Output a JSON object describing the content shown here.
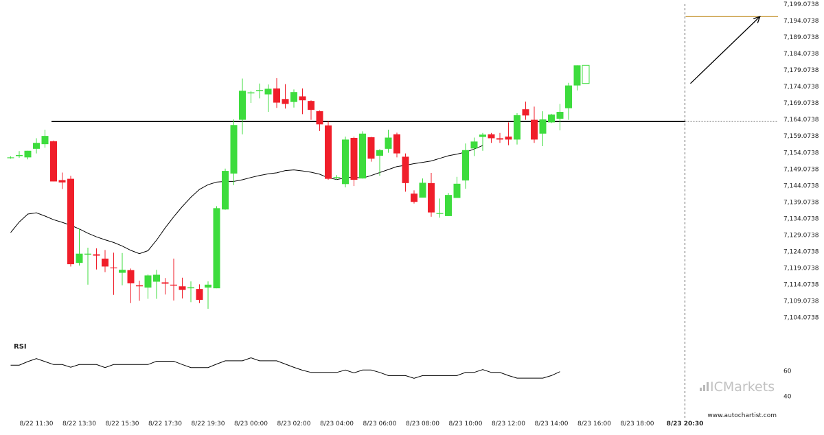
{
  "chart_data": {
    "type": "candlestick",
    "instrument_note": "",
    "colors": {
      "bullish": "#3ddc3d",
      "bearish": "#f01e2a",
      "moving_average": "#000000",
      "support_line": "#000000",
      "target_line": "#c89a3c",
      "forecast_arrow": "#000000",
      "rsi_line": "#000000"
    },
    "y_axis": {
      "min": 7101.0738,
      "max": 7199.0738,
      "tick_labels": [
        "7,199.0738",
        "7,194.0738",
        "7,189.0738",
        "7,184.0738",
        "7,179.0738",
        "7,174.0738",
        "7,169.0738",
        "7,164.0738",
        "7,159.0738",
        "7,154.0738",
        "7,149.0738",
        "7,144.0738",
        "7,139.0738",
        "7,134.0738",
        "7,129.0738",
        "7,124.0738",
        "7,119.0738",
        "7,114.0738",
        "7,109.0738",
        "7,104.0738"
      ],
      "tick_values": [
        7199.0738,
        7194.0738,
        7189.0738,
        7184.0738,
        7179.0738,
        7174.0738,
        7169.0738,
        7164.0738,
        7159.0738,
        7154.0738,
        7149.0738,
        7144.0738,
        7139.0738,
        7134.0738,
        7129.0738,
        7124.0738,
        7119.0738,
        7114.0738,
        7109.0738,
        7104.0738
      ]
    },
    "x_axis": {
      "tick_labels": [
        "8/22 11:30",
        "8/22 13:30",
        "8/22 15:30",
        "8/22 17:30",
        "8/22 19:30",
        "8/23 00:00",
        "8/23 02:00",
        "8/23 04:00",
        "8/23 06:00",
        "8/23 08:00",
        "8/23 10:00",
        "8/23 12:00",
        "8/23 14:00",
        "8/23 16:00",
        "8/23 18:00",
        "8/23 20:30"
      ],
      "tick_indices": [
        3,
        8,
        13,
        18,
        23,
        28,
        33,
        38,
        43,
        48,
        53,
        58,
        63,
        68,
        73,
        78
      ],
      "bold_last": true
    },
    "candles": [
      {
        "o": 7152.6,
        "h": 7152.9,
        "l": 7152.2,
        "c": 7152.6
      },
      {
        "o": 7153.0,
        "h": 7154.5,
        "l": 7152.5,
        "c": 7153.3
      },
      {
        "o": 7152.6,
        "h": 7154.6,
        "l": 7152.0,
        "c": 7154.6
      },
      {
        "o": 7155.2,
        "h": 7158.4,
        "l": 7153.8,
        "c": 7157.0
      },
      {
        "o": 7156.6,
        "h": 7161.0,
        "l": 7155.5,
        "c": 7159.1
      },
      {
        "o": 7157.5,
        "h": 7157.7,
        "l": 7145.3,
        "c": 7145.3
      },
      {
        "o": 7145.7,
        "h": 7148.0,
        "l": 7143.0,
        "c": 7145.0
      },
      {
        "o": 7146.1,
        "h": 7147.0,
        "l": 7119.5,
        "c": 7120.2
      },
      {
        "o": 7120.6,
        "h": 7131.1,
        "l": 7119.8,
        "c": 7123.4
      },
      {
        "o": 7123.1,
        "h": 7125.2,
        "l": 7114.0,
        "c": 7123.4
      },
      {
        "o": 7123.2,
        "h": 7125.0,
        "l": 7118.6,
        "c": 7122.8
      },
      {
        "o": 7121.9,
        "h": 7124.5,
        "l": 7117.8,
        "c": 7119.5
      },
      {
        "o": 7119.2,
        "h": 7123.7,
        "l": 7110.9,
        "c": 7119.1
      },
      {
        "o": 7117.6,
        "h": 7123.6,
        "l": 7113.8,
        "c": 7118.5
      },
      {
        "o": 7118.4,
        "h": 7118.9,
        "l": 7108.4,
        "c": 7114.4
      },
      {
        "o": 7113.8,
        "h": 7115.2,
        "l": 7109.1,
        "c": 7113.5
      },
      {
        "o": 7113.1,
        "h": 7117.1,
        "l": 7109.7,
        "c": 7116.8
      },
      {
        "o": 7114.9,
        "h": 7118.5,
        "l": 7109.7,
        "c": 7117.0
      },
      {
        "o": 7114.7,
        "h": 7116.0,
        "l": 7111.0,
        "c": 7114.3
      },
      {
        "o": 7114.0,
        "h": 7121.9,
        "l": 7109.2,
        "c": 7113.7
      },
      {
        "o": 7113.5,
        "h": 7116.1,
        "l": 7109.8,
        "c": 7112.4
      },
      {
        "o": 7112.9,
        "h": 7115.0,
        "l": 7108.7,
        "c": 7113.2
      },
      {
        "o": 7112.7,
        "h": 7114.1,
        "l": 7108.4,
        "c": 7109.4
      },
      {
        "o": 7113.1,
        "h": 7115.0,
        "l": 7106.7,
        "c": 7114.0
      },
      {
        "o": 7112.9,
        "h": 7137.8,
        "l": 7112.9,
        "c": 7137.2
      },
      {
        "o": 7136.8,
        "h": 7149.2,
        "l": 7136.7,
        "c": 7148.5
      },
      {
        "o": 7147.7,
        "h": 7164.1,
        "l": 7144.2,
        "c": 7162.4
      },
      {
        "o": 7164.0,
        "h": 7176.5,
        "l": 7159.6,
        "c": 7172.8
      },
      {
        "o": 7172.0,
        "h": 7172.7,
        "l": 7169.1,
        "c": 7172.3
      },
      {
        "o": 7172.7,
        "h": 7175.0,
        "l": 7170.5,
        "c": 7173.0
      },
      {
        "o": 7171.7,
        "h": 7174.7,
        "l": 7166.4,
        "c": 7173.4
      },
      {
        "o": 7173.5,
        "h": 7176.6,
        "l": 7167.6,
        "c": 7169.2
      },
      {
        "o": 7170.3,
        "h": 7174.8,
        "l": 7167.4,
        "c": 7168.8
      },
      {
        "o": 7169.4,
        "h": 7173.2,
        "l": 7167.7,
        "c": 7172.4
      },
      {
        "o": 7171.1,
        "h": 7173.5,
        "l": 7165.7,
        "c": 7169.9
      },
      {
        "o": 7169.7,
        "h": 7169.9,
        "l": 7164.0,
        "c": 7167.0
      },
      {
        "o": 7166.6,
        "h": 7166.8,
        "l": 7160.6,
        "c": 7162.6
      },
      {
        "o": 7162.3,
        "h": 7163.6,
        "l": 7145.8,
        "c": 7146.1
      },
      {
        "o": 7146.4,
        "h": 7147.2,
        "l": 7145.8,
        "c": 7146.6
      },
      {
        "o": 7144.5,
        "h": 7158.9,
        "l": 7143.5,
        "c": 7158.0
      },
      {
        "o": 7158.5,
        "h": 7158.9,
        "l": 7143.9,
        "c": 7145.8
      },
      {
        "o": 7146.2,
        "h": 7160.5,
        "l": 7146.2,
        "c": 7159.8
      },
      {
        "o": 7158.7,
        "h": 7158.8,
        "l": 7151.3,
        "c": 7152.2
      },
      {
        "o": 7153.1,
        "h": 7155.1,
        "l": 7147.0,
        "c": 7154.8
      },
      {
        "o": 7155.2,
        "h": 7161.0,
        "l": 7154.0,
        "c": 7158.6
      },
      {
        "o": 7159.6,
        "h": 7160.1,
        "l": 7152.6,
        "c": 7153.8
      },
      {
        "o": 7152.8,
        "h": 7153.8,
        "l": 7142.2,
        "c": 7144.8
      },
      {
        "o": 7141.6,
        "h": 7142.6,
        "l": 7138.6,
        "c": 7139.1
      },
      {
        "o": 7140.4,
        "h": 7146.2,
        "l": 7140.4,
        "c": 7144.9
      },
      {
        "o": 7144.8,
        "h": 7147.9,
        "l": 7134.6,
        "c": 7135.9
      },
      {
        "o": 7135.7,
        "h": 7140.1,
        "l": 7134.3,
        "c": 7135.7
      },
      {
        "o": 7134.8,
        "h": 7141.8,
        "l": 7134.8,
        "c": 7141.2
      },
      {
        "o": 7140.3,
        "h": 7146.7,
        "l": 7140.3,
        "c": 7144.6
      },
      {
        "o": 7145.6,
        "h": 7156.8,
        "l": 7143.1,
        "c": 7154.8
      },
      {
        "o": 7155.3,
        "h": 7158.6,
        "l": 7153.0,
        "c": 7157.4
      },
      {
        "o": 7158.8,
        "h": 7160.0,
        "l": 7154.6,
        "c": 7159.5
      },
      {
        "o": 7159.6,
        "h": 7160.0,
        "l": 7157.0,
        "c": 7158.4
      },
      {
        "o": 7158.4,
        "h": 7160.0,
        "l": 7157.0,
        "c": 7158.0
      },
      {
        "o": 7158.9,
        "h": 7163.2,
        "l": 7156.3,
        "c": 7158.0
      },
      {
        "o": 7158.0,
        "h": 7166.0,
        "l": 7156.5,
        "c": 7165.4
      },
      {
        "o": 7167.2,
        "h": 7169.5,
        "l": 7164.0,
        "c": 7165.3
      },
      {
        "o": 7164.0,
        "h": 7168.0,
        "l": 7157.0,
        "c": 7158.0
      },
      {
        "o": 7159.8,
        "h": 7166.6,
        "l": 7156.0,
        "c": 7164.1
      },
      {
        "o": 7163.2,
        "h": 7165.8,
        "l": 7163.0,
        "c": 7165.6
      },
      {
        "o": 7164.3,
        "h": 7168.8,
        "l": 7160.8,
        "c": 7166.4
      },
      {
        "o": 7167.5,
        "h": 7175.2,
        "l": 7164.0,
        "c": 7174.4
      },
      {
        "o": 7174.4,
        "h": 7180.5,
        "l": 7172.9,
        "c": 7180.5
      }
    ],
    "moving_average": [
      7129.8,
      7133.0,
      7135.4,
      7135.8,
      7134.8,
      7133.7,
      7132.9,
      7132.0,
      7130.9,
      7129.6,
      7128.5,
      7127.6,
      7126.8,
      7125.7,
      7124.4,
      7123.4,
      7124.3,
      7127.5,
      7131.2,
      7134.6,
      7137.7,
      7140.5,
      7142.9,
      7144.3,
      7145.1,
      7145.3,
      7145.3,
      7145.8,
      7146.5,
      7147.1,
      7147.6,
      7147.9,
      7148.6,
      7148.8,
      7148.5,
      7148.1,
      7147.5,
      7146.4,
      7145.9,
      7146.4,
      7146.6,
      7146.3,
      7147.1,
      7148.0,
      7148.9,
      7149.8,
      7150.2,
      7150.7,
      7151.1,
      7151.5,
      7152.3,
      7153.1,
      7153.6,
      7154.2,
      7155.1,
      7156.2
    ],
    "support_level": 7163.5,
    "target_level": 7195.3,
    "forecast_start": {
      "index": 79.2,
      "value": 7175.0
    },
    "forecast_end": {
      "index": 87.3,
      "value": 7195.3
    },
    "rsi": {
      "label": "RSI",
      "tick_labels": [
        "60",
        "40"
      ],
      "tick_values": [
        60,
        40
      ],
      "range": [
        36,
        76.5
      ],
      "values": [
        64.5,
        64.5,
        67.3,
        69.7,
        67.3,
        65.0,
        65.0,
        62.9,
        65.0,
        65.0,
        65.0,
        62.6,
        65.0,
        65.0,
        65.0,
        65.0,
        65.0,
        67.6,
        67.6,
        67.6,
        65.0,
        62.6,
        62.6,
        62.6,
        65.4,
        67.9,
        67.9,
        67.9,
        70.3,
        67.9,
        67.9,
        67.9,
        65.4,
        62.8,
        60.5,
        58.8,
        58.8,
        58.8,
        58.8,
        60.7,
        58.4,
        60.7,
        60.7,
        58.8,
        56.3,
        56.3,
        56.3,
        54.2,
        56.3,
        56.3,
        56.3,
        56.3,
        56.3,
        58.8,
        58.8,
        61.0,
        58.8,
        58.8,
        56.3,
        54.3,
        54.3,
        54.3,
        54.3,
        56.3,
        59.4
      ]
    }
  },
  "branding": {
    "logo_prefix": "IC",
    "logo_suffix": "Markets",
    "website": "www.autochartist.com"
  }
}
